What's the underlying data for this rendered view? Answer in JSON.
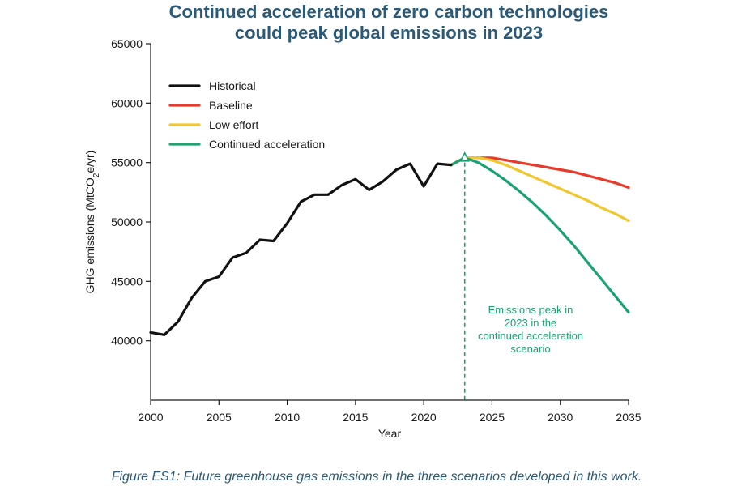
{
  "title_lines": [
    "Continued acceleration of zero carbon technologies",
    "could peak global emissions in 2023"
  ],
  "caption": "Figure ES1: Future greenhouse gas emissions in the three scenarios developed in this work.",
  "chart_data": {
    "type": "line",
    "title": "Continued acceleration of zero carbon technologies could peak global emissions in 2023",
    "xlabel": "Year",
    "ylabel_parts": [
      "GHG emissions (MtCO",
      "2",
      "e/yr)"
    ],
    "xlim": [
      2000,
      2035
    ],
    "ylim": [
      35000,
      65000
    ],
    "xticks": [
      2000,
      2005,
      2010,
      2015,
      2020,
      2025,
      2030,
      2035
    ],
    "yticks": [
      40000,
      45000,
      50000,
      55000,
      60000,
      65000
    ],
    "grid": false,
    "legend_position": "top-left",
    "colors": {
      "Historical": "#111111",
      "Baseline": "#e8392a",
      "Low effort": "#f2c72c",
      "Continued acceleration": "#1aa36e"
    },
    "series": [
      {
        "name": "Historical",
        "x": [
          2000,
          2001,
          2002,
          2003,
          2004,
          2005,
          2006,
          2007,
          2008,
          2009,
          2010,
          2011,
          2012,
          2013,
          2014,
          2015,
          2016,
          2017,
          2018,
          2019,
          2020,
          2021,
          2022
        ],
        "y": [
          40700,
          40500,
          41600,
          43600,
          45000,
          45400,
          47000,
          47400,
          48500,
          48400,
          49900,
          51700,
          52300,
          52300,
          53100,
          53600,
          52700,
          53400,
          54400,
          54900,
          53000,
          54900,
          54800
        ]
      },
      {
        "name": "Baseline",
        "x": [
          2022,
          2023,
          2024,
          2025,
          2026,
          2027,
          2028,
          2029,
          2030,
          2031,
          2032,
          2033,
          2034,
          2035
        ],
        "y": [
          54800,
          55400,
          55400,
          55400,
          55200,
          55000,
          54800,
          54600,
          54400,
          54200,
          53900,
          53600,
          53300,
          52900
        ]
      },
      {
        "name": "Low effort",
        "x": [
          2022,
          2023,
          2024,
          2025,
          2026,
          2027,
          2028,
          2029,
          2030,
          2031,
          2032,
          2033,
          2034,
          2035
        ],
        "y": [
          54800,
          55400,
          55400,
          55200,
          54800,
          54300,
          53800,
          53300,
          52800,
          52300,
          51800,
          51200,
          50700,
          50100
        ]
      },
      {
        "name": "Continued acceleration",
        "x": [
          2022,
          2023,
          2024,
          2025,
          2026,
          2027,
          2028,
          2029,
          2030,
          2031,
          2032,
          2033,
          2034,
          2035
        ],
        "y": [
          54800,
          55400,
          55000,
          54300,
          53500,
          52600,
          51600,
          50500,
          49300,
          48000,
          46600,
          45200,
          43800,
          42400
        ]
      }
    ],
    "annotation": {
      "x": 2023,
      "y": 55400,
      "text_lines": [
        "Emissions peak in",
        "2023 in the",
        "continued acceleration",
        "scenario"
      ]
    }
  }
}
